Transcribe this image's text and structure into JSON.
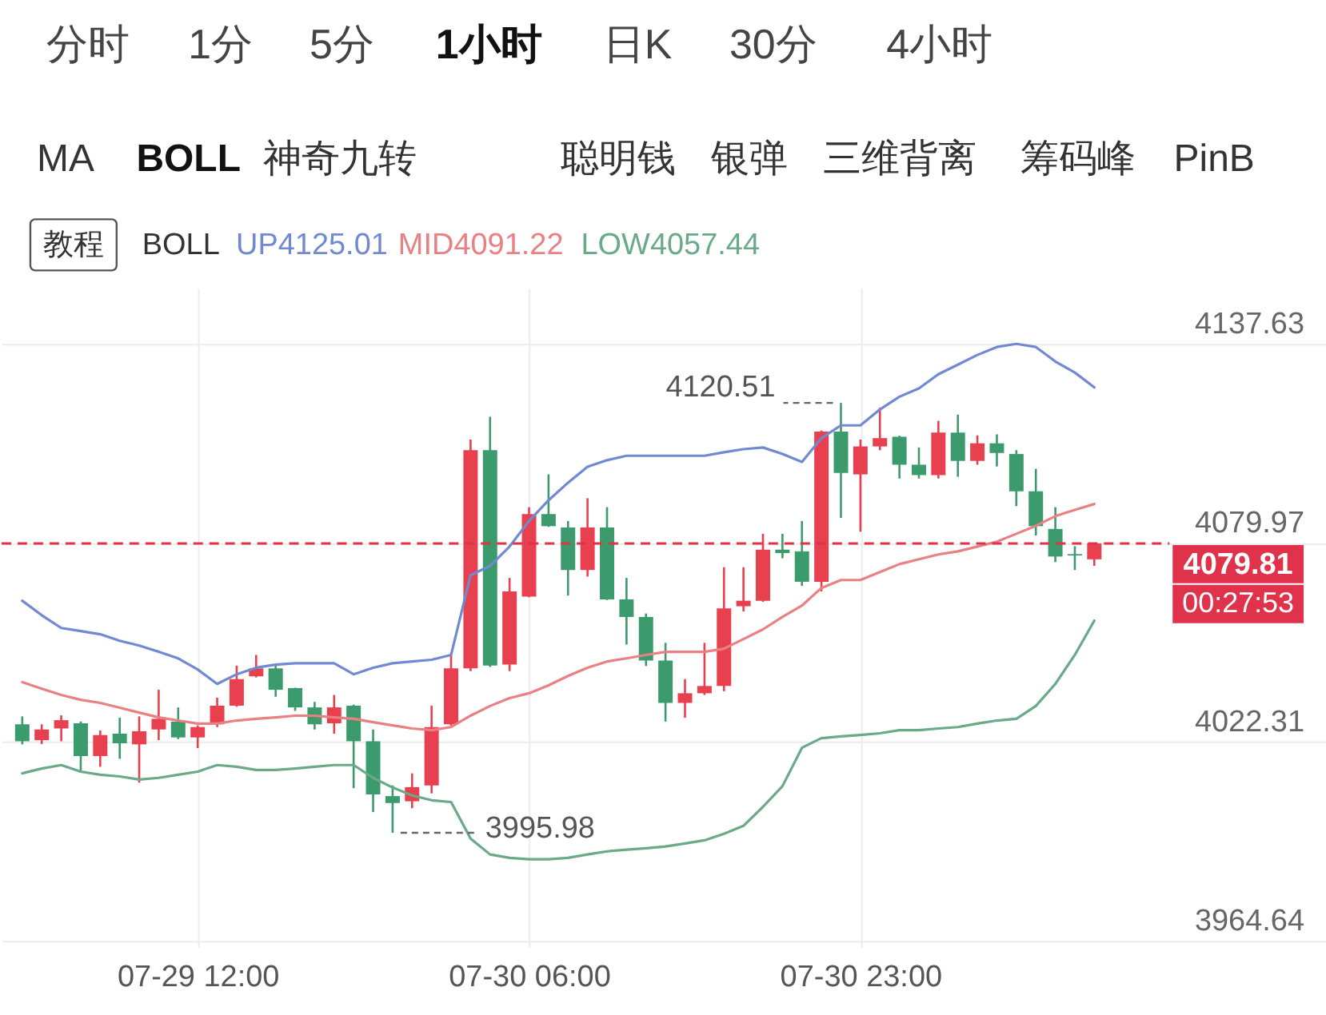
{
  "chart_data": {
    "type": "candlestick",
    "categories": [
      null,
      null,
      null,
      null,
      null,
      null,
      null,
      null,
      null,
      "07-29 12:00",
      null,
      null,
      null,
      null,
      null,
      null,
      null,
      null,
      null,
      null,
      null,
      null,
      null,
      null,
      null,
      null,
      "07-30 06:00",
      null,
      null,
      null,
      null,
      null,
      null,
      null,
      null,
      null,
      null,
      null,
      null,
      null,
      null,
      null,
      null,
      "07-30 23:00",
      null,
      null,
      null,
      null,
      null,
      null,
      null,
      null,
      null,
      null,
      null,
      null
    ],
    "ohlc": [
      [
        4027.4,
        4029.7,
        4021.6,
        4022.5
      ],
      [
        4022.8,
        4027.4,
        4021.7,
        4025.9
      ],
      [
        4026.2,
        4030.0,
        4022.5,
        4028.6
      ],
      [
        4027.7,
        4028.2,
        4013.8,
        4018.2
      ],
      [
        4018.2,
        4025.6,
        4015.1,
        4024.3
      ],
      [
        4024.7,
        4029.3,
        4017.4,
        4021.9
      ],
      [
        4021.6,
        4029.7,
        4010.5,
        4025.4
      ],
      [
        4025.9,
        4037.4,
        4022.8,
        4029.0
      ],
      [
        4028.2,
        4032.3,
        4023.1,
        4023.6
      ],
      [
        4023.6,
        4027.1,
        4020.5,
        4026.6
      ],
      [
        4027.4,
        4035.1,
        4026.6,
        4032.8
      ],
      [
        4032.8,
        4044.4,
        4032.5,
        4040.5
      ],
      [
        4041.3,
        4047.5,
        4041.0,
        4043.6
      ],
      [
        4043.6,
        4044.4,
        4035.4,
        4037.4
      ],
      [
        4037.9,
        4038.0,
        4031.3,
        4032.3
      ],
      [
        4032.3,
        4033.9,
        4025.9,
        4027.4
      ],
      [
        4027.7,
        4035.9,
        4024.7,
        4032.3
      ],
      [
        4032.8,
        4033.1,
        4008.9,
        4022.5
      ],
      [
        4022.5,
        4025.9,
        4002.0,
        4007.1
      ],
      [
        4006.6,
        4009.7,
        3995.98,
        4004.6
      ],
      [
        4005.1,
        4013.2,
        4003.1,
        4009.2
      ],
      [
        4009.7,
        4032.8,
        4007.4,
        4026.6
      ],
      [
        4027.4,
        4047.5,
        4027.0,
        4043.6
      ],
      [
        4043.6,
        4109.9,
        4042.8,
        4106.8
      ],
      [
        4106.8,
        4116.5,
        4044.0,
        4044.4
      ],
      [
        4044.7,
        4069.8,
        4042.8,
        4065.9
      ],
      [
        4064.4,
        4090.3,
        4064.2,
        4088.3
      ],
      [
        4088.3,
        4099.8,
        4084.6,
        4084.8
      ],
      [
        4084.4,
        4086.3,
        4064.7,
        4072.1
      ],
      [
        4072.1,
        4092.9,
        4070.2,
        4084.4
      ],
      [
        4084.4,
        4090.3,
        4063.4,
        4063.6
      ],
      [
        4063.6,
        4069.8,
        4050.5,
        4058.5
      ],
      [
        4058.5,
        4059.5,
        4044.3,
        4045.9
      ],
      [
        4045.9,
        4051.0,
        4028.2,
        4033.6
      ],
      [
        4033.6,
        4040.5,
        4029.3,
        4036.4
      ],
      [
        4036.4,
        4051.0,
        4035.9,
        4038.5
      ],
      [
        4038.5,
        4072.9,
        4037.0,
        4061.0
      ],
      [
        4061.6,
        4072.9,
        4060.1,
        4063.2
      ],
      [
        4063.2,
        4082.6,
        4062.9,
        4078.0
      ],
      [
        4078.0,
        4082.6,
        4075.5,
        4077.0
      ],
      [
        4077.5,
        4086.3,
        4067.5,
        4068.7
      ],
      [
        4068.7,
        4112.5,
        4065.9,
        4112.2
      ],
      [
        4112.2,
        4120.51,
        4087.2,
        4100.2
      ],
      [
        4099.8,
        4109.9,
        4083.2,
        4107.9
      ],
      [
        4107.9,
        4119.1,
        4106.8,
        4110.3
      ],
      [
        4110.7,
        4111.0,
        4098.6,
        4102.6
      ],
      [
        4102.6,
        4107.6,
        4098.6,
        4099.6
      ],
      [
        4099.6,
        4115.3,
        4098.6,
        4111.9
      ],
      [
        4111.9,
        4117.1,
        4099.1,
        4103.7
      ],
      [
        4103.7,
        4111.1,
        4102.6,
        4108.8
      ],
      [
        4108.8,
        4111.4,
        4102.1,
        4106.0
      ],
      [
        4105.7,
        4106.8,
        4090.6,
        4094.9
      ],
      [
        4094.9,
        4101.4,
        4082.1,
        4084.8
      ],
      [
        4084.0,
        4090.3,
        4074.4,
        4076.0
      ],
      [
        4076.7,
        4079.0,
        4072.1,
        4076.3
      ],
      [
        4075.2,
        4079.81,
        4073.3,
        4079.81
      ]
    ],
    "colors": [
      "#3b9b6c",
      "#e8404f",
      "#e8404f",
      "#3b9b6c",
      "#e8404f",
      "#3b9b6c",
      "#e8404f",
      "#e8404f",
      "#3b9b6c",
      "#e8404f",
      "#e8404f",
      "#e8404f",
      "#e8404f",
      "#3b9b6c",
      "#3b9b6c",
      "#3b9b6c",
      "#e8404f",
      "#3b9b6c",
      "#3b9b6c",
      "#3b9b6c",
      "#e8404f",
      "#e8404f",
      "#e8404f",
      "#e8404f",
      "#3b9b6c",
      "#e8404f",
      "#e8404f",
      "#3b9b6c",
      "#3b9b6c",
      "#e8404f",
      "#3b9b6c",
      "#3b9b6c",
      "#3b9b6c",
      "#3b9b6c",
      "#e8404f",
      "#e8404f",
      "#e8404f",
      "#e8404f",
      "#e8404f",
      "#3b9b6c",
      "#3b9b6c",
      "#e8404f",
      "#3b9b6c",
      "#e8404f",
      "#e8404f",
      "#3b9b6c",
      "#3b9b6c",
      "#e8404f",
      "#3b9b6c",
      "#e8404f",
      "#3b9b6c",
      "#3b9b6c",
      "#3b9b6c",
      "#3b9b6c",
      "#3b9b6c",
      "#e8404f"
    ],
    "series": [
      {
        "name": "UP4125.01",
        "type": "line",
        "color": "#7189d0",
        "values": [
          4063.2,
          4059.0,
          4055.3,
          4054.4,
          4053.5,
          4051.6,
          4050.2,
          4048.4,
          4046.5,
          4043.3,
          4039.1,
          4041.9,
          4043.8,
          4044.7,
          4045.1,
          4045.1,
          4045.1,
          4041.9,
          4043.8,
          4045.1,
          4045.6,
          4046.1,
          4047.5,
          4070.6,
          4073.3,
          4078.9,
          4086.3,
          4092.3,
          4097.4,
          4102.0,
          4103.9,
          4105.2,
          4105.2,
          4105.2,
          4105.2,
          4105.2,
          4106.2,
          4107.1,
          4107.6,
          4105.7,
          4103.4,
          4110.3,
          4114.0,
          4114.0,
          4118.6,
          4122.3,
          4124.7,
          4128.8,
          4131.6,
          4134.4,
          4136.7,
          4137.6,
          4136.7,
          4132.5,
          4129.3,
          4125.01
        ]
      },
      {
        "name": "MID4091.22",
        "type": "line",
        "color": "#e98083",
        "values": [
          4039.6,
          4037.7,
          4035.9,
          4034.5,
          4033.6,
          4032.2,
          4030.8,
          4029.4,
          4028.5,
          4027.6,
          4027.6,
          4028.5,
          4029.0,
          4029.4,
          4029.9,
          4029.9,
          4029.4,
          4029.0,
          4028.0,
          4027.1,
          4026.2,
          4025.7,
          4026.6,
          4029.9,
          4032.7,
          4035.0,
          4036.4,
          4038.7,
          4041.4,
          4043.8,
          4045.6,
          4046.5,
          4047.5,
          4048.4,
          4048.4,
          4048.4,
          4049.3,
          4052.1,
          4054.9,
          4058.5,
          4061.8,
          4066.9,
          4069.2,
          4069.2,
          4071.5,
          4073.8,
          4075.2,
          4076.6,
          4077.5,
          4078.9,
          4080.3,
          4082.6,
          4084.9,
          4087.7,
          4089.5,
          4091.22
        ]
      },
      {
        "name": "LOW4057.44",
        "type": "line",
        "color": "#6aaa88",
        "values": [
          4013.2,
          4014.6,
          4015.6,
          4013.7,
          4012.8,
          4012.3,
          4011.4,
          4011.9,
          4012.8,
          4013.7,
          4015.6,
          4015.1,
          4014.2,
          4014.2,
          4014.6,
          4015.1,
          4015.6,
          4015.6,
          4011.9,
          4009.1,
          4006.8,
          4005.4,
          4004.9,
          3994.3,
          3989.7,
          3988.7,
          3988.3,
          3988.3,
          3988.7,
          3989.7,
          3990.6,
          3991.1,
          3991.5,
          3992.0,
          3992.9,
          3993.8,
          3995.7,
          3998.0,
          4003.5,
          4009.5,
          4020.6,
          4023.4,
          4023.9,
          4024.3,
          4024.8,
          4025.7,
          4025.7,
          4026.2,
          4026.6,
          4027.6,
          4028.5,
          4029.0,
          4032.7,
          4039.1,
          4047.5,
          4057.44
        ]
      }
    ],
    "ylim": [
      3962.8,
      4153.8
    ],
    "yticks": [
      3964.64,
      4022.31,
      4079.97,
      4137.63
    ],
    "grid": true,
    "legend": "top left",
    "legend_title": "BOLL",
    "ref_lines": [
      {
        "axis": "y",
        "value": 4079.81,
        "color": "#e0324b",
        "line_style": "dashed"
      }
    ],
    "annotations": [
      "分时",
      "1分",
      "5分",
      "1小时",
      "日K",
      "30分",
      "4小时",
      "MA",
      "BOLL",
      "神奇九转",
      "聪明钱",
      "银弹",
      "三维背离",
      "筹码峰",
      "PinB",
      "教程",
      "4079.81",
      "00:27:53",
      "4120.51",
      "3995.98"
    ]
  }
}
